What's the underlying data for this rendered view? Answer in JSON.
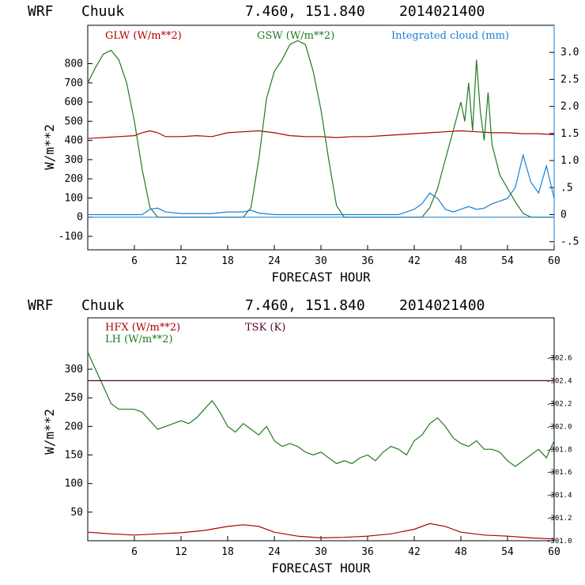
{
  "chart_data": [
    {
      "type": "line",
      "header": {
        "model": "WRF",
        "location": "Chuuk",
        "coords": "7.460, 151.840",
        "init": "2014021400"
      },
      "xlabel": "FORECAST HOUR",
      "ylabel": "W/m**2",
      "xlim": [
        0,
        60
      ],
      "ylim": [
        -170,
        1000
      ],
      "y2lim": [
        -0.65,
        3.5
      ],
      "x_ticks": [
        "6",
        "12",
        "18",
        "24",
        "30",
        "36",
        "42",
        "48",
        "54",
        "60"
      ],
      "y_ticks": [
        "800",
        "700",
        "600",
        "500",
        "400",
        "300",
        "200",
        "100",
        "0",
        "-100"
      ],
      "y2_ticks": [
        "3.0",
        "2.5",
        "2.0",
        "1.5",
        "1.0",
        ".5",
        "0",
        "-.5"
      ],
      "legend": [
        {
          "label": "GLW (W/m**2)",
          "color": "#b00000"
        },
        {
          "label": "GSW (W/m**2)",
          "color": "#1f7a1f"
        },
        {
          "label": "Integrated cloud (mm)",
          "color": "#1a7fd6"
        }
      ],
      "series": [
        {
          "name": "GLW (W/m**2)",
          "color": "#b00000",
          "axis": "left",
          "x": [
            0,
            2,
            4,
            6,
            7,
            8,
            9,
            10,
            12,
            14,
            16,
            18,
            20,
            22,
            24,
            26,
            28,
            30,
            32,
            34,
            36,
            38,
            40,
            42,
            44,
            46,
            48,
            50,
            52,
            54,
            56,
            58,
            60
          ],
          "values": [
            410,
            415,
            420,
            425,
            440,
            450,
            440,
            420,
            420,
            425,
            420,
            440,
            445,
            450,
            440,
            425,
            420,
            420,
            415,
            420,
            420,
            425,
            430,
            435,
            440,
            445,
            450,
            445,
            440,
            440,
            435,
            435,
            430
          ]
        },
        {
          "name": "GSW (W/m**2)",
          "color": "#1f7a1f",
          "axis": "left",
          "x": [
            0,
            1,
            2,
            3,
            4,
            5,
            6,
            7,
            8,
            9,
            10,
            12,
            14,
            16,
            18,
            20,
            21,
            22,
            23,
            24,
            25,
            26,
            27,
            28,
            29,
            30,
            31,
            32,
            33,
            34,
            36,
            38,
            40,
            42,
            43,
            44,
            45,
            46,
            47,
            48,
            48.5,
            49,
            49.5,
            50,
            50.5,
            51,
            51.5,
            52,
            53,
            54,
            55,
            56,
            57,
            58,
            59,
            60
          ],
          "values": [
            700,
            780,
            850,
            870,
            820,
            700,
            500,
            250,
            50,
            0,
            0,
            0,
            0,
            0,
            0,
            0,
            50,
            300,
            620,
            760,
            820,
            900,
            920,
            900,
            760,
            560,
            300,
            60,
            0,
            0,
            0,
            0,
            0,
            0,
            0,
            50,
            150,
            300,
            450,
            600,
            500,
            700,
            450,
            820,
            550,
            400,
            650,
            380,
            220,
            150,
            80,
            20,
            0,
            0,
            0,
            0
          ]
        },
        {
          "name": "Integrated cloud (mm)",
          "color": "#1a7fd6",
          "axis": "right",
          "x": [
            0,
            4,
            7,
            7.5,
            8,
            9,
            10,
            12,
            16,
            18,
            20,
            21,
            22,
            24,
            30,
            36,
            40,
            42,
            43,
            44,
            45,
            46,
            47,
            48,
            49,
            50,
            51,
            52,
            53,
            54,
            55,
            56,
            57,
            58,
            59,
            60
          ],
          "values": [
            0,
            0,
            0,
            0.05,
            0.1,
            0.12,
            0.05,
            0.02,
            0.02,
            0.05,
            0.05,
            0.08,
            0.03,
            0,
            0,
            0,
            0,
            0.1,
            0.2,
            0.4,
            0.3,
            0.1,
            0.05,
            0.1,
            0.15,
            0.1,
            0.12,
            0.2,
            0.25,
            0.3,
            0.5,
            1.1,
            0.6,
            0.4,
            0.9,
            0.3
          ]
        }
      ]
    },
    {
      "type": "line",
      "header": {
        "model": "WRF",
        "location": "Chuuk",
        "coords": "7.460, 151.840",
        "init": "2014021400"
      },
      "xlabel": "FORECAST HOUR",
      "ylabel": "W/m**2",
      "xlim": [
        0,
        60
      ],
      "ylim": [
        0,
        390
      ],
      "y2lim": [
        301.0,
        302.95
      ],
      "x_ticks": [
        "6",
        "12",
        "18",
        "24",
        "30",
        "36",
        "42",
        "48",
        "54",
        "60"
      ],
      "y_ticks": [
        "300",
        "250",
        "200",
        "150",
        "100",
        "50"
      ],
      "y2_ticks": [
        "302.6",
        "302.4",
        "302.2",
        "302.0",
        "301.8",
        "301.6",
        "301.4",
        "301.2",
        "301.0"
      ],
      "legend": [
        {
          "label": "HFX (W/m**2)",
          "color": "#b00000"
        },
        {
          "label": "LH  (W/m**2)",
          "color": "#1f7a1f"
        },
        {
          "label": "TSK (K)",
          "color": "#5a0030"
        }
      ],
      "series": [
        {
          "name": "HFX (W/m**2)",
          "color": "#b00000",
          "axis": "left",
          "x": [
            0,
            3,
            6,
            9,
            12,
            15,
            18,
            20,
            22,
            24,
            27,
            30,
            33,
            36,
            39,
            42,
            44,
            46,
            48,
            51,
            54,
            57,
            60
          ],
          "values": [
            15,
            12,
            10,
            12,
            14,
            18,
            25,
            28,
            25,
            15,
            8,
            5,
            6,
            8,
            12,
            20,
            30,
            25,
            15,
            10,
            8,
            5,
            3
          ]
        },
        {
          "name": "LH  (W/m**2)",
          "color": "#1f7a1f",
          "axis": "left",
          "x": [
            0,
            1,
            2,
            3,
            4,
            5,
            6,
            7,
            8,
            9,
            10,
            11,
            12,
            13,
            14,
            15,
            16,
            17,
            18,
            19,
            20,
            21,
            22,
            23,
            24,
            25,
            26,
            27,
            28,
            29,
            30,
            31,
            32,
            33,
            34,
            35,
            36,
            37,
            38,
            39,
            40,
            41,
            42,
            43,
            44,
            45,
            46,
            47,
            48,
            49,
            50,
            51,
            52,
            53,
            54,
            55,
            56,
            57,
            58,
            59,
            60
          ],
          "values": [
            330,
            300,
            270,
            240,
            230,
            230,
            230,
            225,
            210,
            195,
            200,
            205,
            210,
            205,
            215,
            230,
            245,
            225,
            200,
            190,
            205,
            195,
            185,
            200,
            175,
            165,
            170,
            165,
            155,
            150,
            155,
            145,
            135,
            140,
            135,
            145,
            150,
            140,
            155,
            165,
            160,
            150,
            175,
            185,
            205,
            215,
            200,
            180,
            170,
            165,
            175,
            160,
            160,
            155,
            140,
            130,
            140,
            150,
            160,
            145,
            175
          ]
        },
        {
          "name": "TSK (K)",
          "color": "#5a0030",
          "axis": "right",
          "x": [
            0,
            60
          ],
          "values": [
            302.4,
            302.4
          ]
        }
      ]
    }
  ]
}
